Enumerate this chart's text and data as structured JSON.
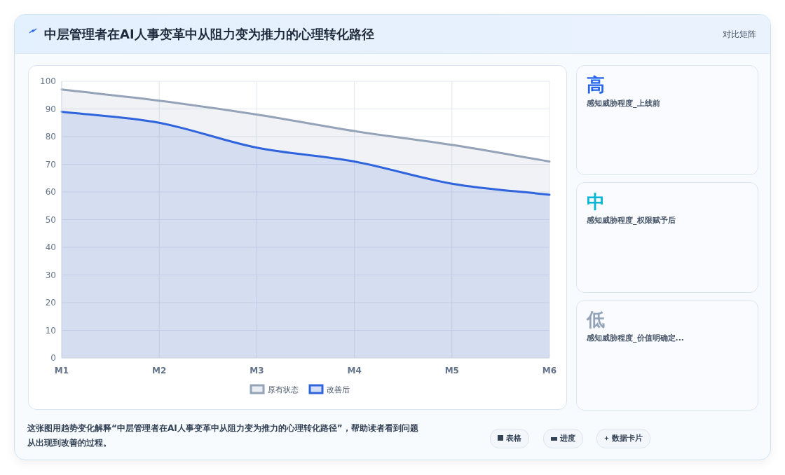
{
  "chart_data": [
    {
      "type": "area",
      "title": "中层管理者在AI人事变革中从阻力变为推力的心理转化路径",
      "categories": [
        "M1",
        "M2",
        "M3",
        "M4",
        "M5",
        "M6"
      ],
      "series": [
        {
          "name": "原有状态",
          "color": "#94a3b8",
          "values": [
            97,
            93,
            88,
            82,
            77,
            71
          ]
        },
        {
          "name": "改善后",
          "color": "#2f64dc",
          "values": [
            89,
            85,
            76,
            71,
            63,
            59
          ]
        }
      ],
      "ylim": [
        0,
        100
      ],
      "yticks": [
        0,
        10,
        20,
        30,
        40,
        50,
        60,
        70,
        80,
        90,
        100
      ],
      "grid": true,
      "legend": "bottom",
      "annotations": [
        "对比矩阵",
        "这张图用趋势变化解释“中层管理者在AI人事变革中从阻力变为推力的心理转化路径”，帮助读者看到问题从出现到改善的过程。",
        "表格",
        "进度",
        "数据卡片"
      ]
    },
    {
      "type": "other",
      "annotations": [
        "高",
        "感知威胁程度_上线前",
        "中",
        "感知威胁程度_权限赋予后",
        "低",
        "感知威胁程度_价值明确定..."
      ]
    }
  ]
}
